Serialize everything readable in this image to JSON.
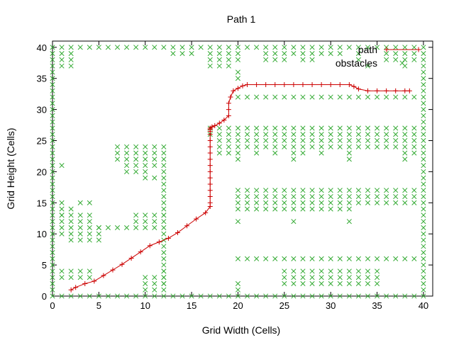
{
  "chart_data": {
    "type": "scatter",
    "title": "Path 1",
    "xlabel": "Grid Width (Cells)",
    "ylabel": "Grid Height (Cells)",
    "xlim": [
      0,
      41
    ],
    "ylim": [
      0,
      41
    ],
    "xticks": [
      0,
      5,
      10,
      15,
      20,
      25,
      30,
      35,
      40
    ],
    "yticks": [
      0,
      5,
      10,
      15,
      20,
      25,
      30,
      35,
      40
    ],
    "grid": false,
    "legend_position": "top-right",
    "series": [
      {
        "name": "path",
        "color": "#cc0000",
        "marker": "plus",
        "style": "line",
        "x": [
          2,
          2.5,
          3.5,
          4.5,
          5.5,
          6.5,
          7.5,
          8.5,
          9.5,
          10.5,
          11.5,
          12.5,
          13.5,
          14.5,
          15.5,
          16.5,
          17,
          17,
          17,
          17,
          17,
          17,
          17,
          17,
          17,
          17,
          17,
          17,
          17,
          17,
          17,
          17,
          17.2,
          17.5,
          18,
          18.5,
          19,
          19,
          19,
          19.2,
          19.5,
          20,
          20.5,
          21,
          22,
          23,
          24,
          25,
          26,
          27,
          28,
          29,
          30,
          31,
          32,
          32.5,
          33,
          34,
          35,
          36,
          37,
          38,
          38.5
        ],
        "y": [
          1,
          1.4,
          2,
          2.4,
          3.3,
          4.2,
          5.1,
          6.1,
          7.1,
          8.1,
          8.7,
          9.3,
          10.2,
          11.3,
          12.4,
          13.4,
          14.4,
          15,
          16,
          17,
          18,
          19,
          20,
          21,
          22,
          23,
          24,
          25,
          26,
          26.5,
          26.8,
          27,
          27.2,
          27.4,
          27.8,
          28.3,
          29,
          30,
          31,
          32,
          33,
          33.4,
          33.8,
          34,
          34,
          34,
          34,
          34,
          34,
          34,
          34,
          34,
          34,
          34,
          34,
          33.7,
          33.3,
          33,
          33,
          33,
          33,
          33,
          33
        ]
      },
      {
        "name": "obstacles",
        "color": "#33aa33",
        "marker": "x",
        "style": "points",
        "x": [
          0,
          0,
          0,
          0,
          0,
          0,
          0,
          0,
          0,
          0,
          0,
          0,
          0,
          0,
          0,
          0,
          0,
          0,
          0,
          0,
          0,
          0,
          0,
          0,
          0,
          0,
          0,
          0,
          0,
          0,
          0,
          0,
          0,
          0,
          0,
          0,
          0,
          0,
          0,
          0,
          0,
          1,
          2,
          3,
          4,
          5,
          6,
          7,
          8,
          9,
          10,
          11,
          12,
          13,
          14,
          15,
          16,
          17,
          18,
          19,
          20,
          21,
          22,
          23,
          24,
          25,
          26,
          27,
          28,
          29,
          30,
          31,
          32,
          33,
          34,
          35,
          36,
          37,
          38,
          39,
          40,
          40,
          40,
          40,
          40,
          40,
          40,
          40,
          40,
          40,
          40,
          40,
          40,
          40,
          40,
          40,
          40,
          40,
          40,
          40,
          40,
          40,
          40,
          40,
          40,
          40,
          40,
          40,
          40,
          40,
          40,
          40,
          40,
          40,
          40,
          40,
          40,
          40,
          40,
          40,
          40,
          1,
          2,
          3,
          4,
          5,
          6,
          7,
          8,
          9,
          10,
          11,
          12,
          13,
          14,
          15,
          16,
          17,
          18,
          19,
          20,
          21,
          22,
          23,
          24,
          25,
          26,
          27,
          28,
          29,
          30,
          31,
          32,
          33,
          34,
          35,
          36,
          37,
          38,
          39,
          1,
          1,
          1,
          2,
          2,
          2,
          13,
          14,
          15,
          17,
          17,
          17,
          18,
          18,
          18,
          19,
          19,
          19,
          20,
          20,
          23,
          23,
          24,
          24,
          25,
          25,
          26,
          27,
          27,
          28,
          28,
          29,
          30,
          31,
          33,
          33,
          34,
          36,
          36,
          37,
          37,
          38,
          38,
          38,
          39,
          39,
          20,
          20,
          20,
          21,
          22,
          23,
          24,
          25,
          26,
          27,
          28,
          29,
          30,
          31,
          32,
          33,
          34,
          35,
          36,
          37,
          38,
          39,
          17,
          18,
          19,
          20,
          21,
          22,
          23,
          24,
          25,
          26,
          27,
          28,
          29,
          30,
          31,
          32,
          33,
          34,
          35,
          36,
          37,
          38,
          39,
          17,
          18,
          19,
          20,
          21,
          22,
          23,
          24,
          25,
          26,
          27,
          28,
          29,
          30,
          31,
          32,
          33,
          34,
          35,
          36,
          37,
          38,
          39,
          18,
          19,
          20,
          21,
          22,
          23,
          24,
          25,
          26,
          27,
          28,
          29,
          30,
          31,
          32,
          33,
          34,
          35,
          36,
          37,
          38,
          39,
          18,
          19,
          20,
          21,
          22,
          23,
          24,
          25,
          26,
          27,
          28,
          29,
          30,
          31,
          32,
          33,
          34,
          35,
          36,
          37,
          38,
          39,
          18,
          19,
          20,
          22,
          24,
          26,
          27,
          29,
          32,
          38,
          39,
          20,
          26,
          32,
          38,
          20,
          21,
          22,
          23,
          24,
          25,
          26,
          27,
          28,
          29,
          30,
          31,
          32,
          33,
          34,
          35,
          36,
          37,
          38,
          39,
          20,
          21,
          22,
          23,
          24,
          25,
          26,
          27,
          28,
          29,
          30,
          31,
          32,
          33,
          34,
          35,
          36,
          37,
          38,
          39,
          20,
          21,
          22,
          23,
          24,
          25,
          26,
          27,
          28,
          29,
          30,
          31,
          32,
          33,
          34,
          35,
          36,
          37,
          38,
          39,
          20,
          21,
          22,
          23,
          24,
          25,
          26,
          27,
          28,
          29,
          30,
          31,
          32,
          20,
          26,
          32,
          20,
          21,
          22,
          23,
          24,
          25,
          26,
          27,
          28,
          29,
          30,
          31,
          32,
          33,
          34,
          35,
          36,
          37,
          38,
          39,
          25,
          26,
          27,
          28,
          29,
          30,
          31,
          32,
          33,
          34,
          35,
          25,
          26,
          27,
          28,
          29,
          30,
          31,
          32,
          33,
          34,
          35,
          25,
          26,
          27,
          28,
          29,
          30,
          31,
          32,
          33,
          34,
          35,
          20,
          20,
          1,
          2,
          3,
          4,
          1,
          2,
          3,
          4,
          1,
          2,
          3,
          4,
          1,
          1,
          2,
          3,
          4,
          5,
          1,
          2,
          3,
          4,
          5,
          1,
          2,
          3,
          4,
          5,
          1,
          1,
          1,
          2,
          2,
          3,
          3,
          4,
          4,
          5,
          6,
          7,
          8,
          7,
          8,
          9,
          10,
          11,
          12,
          7,
          8,
          9,
          10,
          11,
          12,
          7,
          8,
          9,
          10,
          11,
          12,
          8,
          9,
          10,
          11,
          12,
          8,
          9,
          10,
          12,
          9,
          10,
          11,
          12,
          9,
          10,
          11,
          12,
          9,
          10,
          11,
          12,
          10,
          11,
          12,
          12,
          12,
          12,
          12,
          12,
          12,
          12,
          12,
          12,
          12,
          12,
          12,
          12,
          12,
          12,
          10,
          10,
          10,
          11,
          11,
          11,
          12,
          12,
          12,
          12
        ],
        "y": [
          0,
          1,
          2,
          3,
          4,
          5,
          6,
          7,
          8,
          9,
          10,
          11,
          12,
          13,
          14,
          15,
          16,
          17,
          18,
          19,
          20,
          21,
          22,
          23,
          24,
          25,
          26,
          27,
          28,
          29,
          30,
          31,
          32,
          33,
          34,
          35,
          36,
          37,
          38,
          39,
          40,
          0,
          0,
          0,
          0,
          0,
          0,
          0,
          0,
          0,
          0,
          0,
          0,
          0,
          0,
          0,
          0,
          0,
          0,
          0,
          0,
          0,
          0,
          0,
          0,
          0,
          0,
          0,
          0,
          0,
          0,
          0,
          0,
          0,
          0,
          0,
          0,
          0,
          0,
          0,
          0,
          1,
          2,
          3,
          4,
          5,
          6,
          7,
          8,
          9,
          10,
          11,
          12,
          13,
          14,
          15,
          16,
          17,
          18,
          19,
          20,
          21,
          22,
          23,
          24,
          25,
          26,
          27,
          28,
          29,
          30,
          31,
          32,
          33,
          34,
          35,
          36,
          37,
          38,
          39,
          40,
          40,
          40,
          40,
          40,
          40,
          40,
          40,
          40,
          40,
          40,
          40,
          40,
          40,
          40,
          40,
          40,
          40,
          40,
          40,
          40,
          40,
          40,
          40,
          40,
          40,
          40,
          40,
          40,
          40,
          40,
          40,
          40,
          40,
          40,
          40,
          40,
          40,
          40,
          40,
          39,
          38,
          37,
          39,
          38,
          37,
          39,
          39,
          39,
          39,
          38,
          37,
          39,
          38,
          37,
          39,
          38,
          37,
          39,
          38,
          39,
          38,
          39,
          38,
          39,
          38,
          39,
          39,
          38,
          39,
          38,
          39,
          39,
          39,
          39,
          38,
          37,
          39,
          38,
          39,
          38,
          39,
          38,
          37,
          39,
          38,
          36,
          35,
          32,
          32,
          32,
          32,
          32,
          32,
          32,
          32,
          32,
          32,
          32,
          32,
          32,
          32,
          32,
          32,
          32,
          32,
          32,
          32,
          27,
          27,
          27,
          27,
          27,
          27,
          27,
          27,
          27,
          27,
          27,
          27,
          27,
          27,
          27,
          27,
          27,
          27,
          27,
          27,
          27,
          27,
          27,
          26,
          26,
          26,
          26,
          26,
          26,
          26,
          26,
          26,
          26,
          26,
          26,
          26,
          26,
          26,
          26,
          26,
          26,
          26,
          26,
          26,
          26,
          26,
          25,
          25,
          25,
          25,
          25,
          25,
          25,
          25,
          25,
          25,
          25,
          25,
          25,
          25,
          25,
          25,
          25,
          25,
          25,
          25,
          25,
          25,
          24,
          24,
          24,
          24,
          24,
          24,
          24,
          24,
          24,
          24,
          24,
          24,
          24,
          24,
          24,
          24,
          24,
          24,
          24,
          24,
          24,
          24,
          23,
          23,
          23,
          23,
          23,
          23,
          23,
          23,
          23,
          23,
          23,
          22,
          22,
          22,
          22,
          17,
          17,
          17,
          17,
          17,
          17,
          17,
          17,
          17,
          17,
          17,
          17,
          17,
          17,
          17,
          17,
          17,
          17,
          17,
          17,
          16,
          16,
          16,
          16,
          16,
          16,
          16,
          16,
          16,
          16,
          16,
          16,
          16,
          16,
          16,
          16,
          16,
          16,
          16,
          16,
          15,
          15,
          15,
          15,
          15,
          15,
          15,
          15,
          15,
          15,
          15,
          15,
          15,
          15,
          15,
          15,
          15,
          15,
          15,
          15,
          14,
          14,
          14,
          14,
          14,
          14,
          14,
          14,
          14,
          14,
          14,
          14,
          14,
          12,
          12,
          12,
          6,
          6,
          6,
          6,
          6,
          6,
          6,
          6,
          6,
          6,
          6,
          6,
          6,
          6,
          6,
          6,
          6,
          6,
          6,
          6,
          4,
          4,
          4,
          4,
          4,
          4,
          4,
          4,
          4,
          4,
          4,
          3,
          3,
          3,
          3,
          3,
          3,
          3,
          3,
          3,
          3,
          3,
          2,
          2,
          2,
          2,
          2,
          2,
          2,
          2,
          2,
          2,
          2,
          2,
          1,
          4,
          4,
          4,
          4,
          3,
          3,
          3,
          3,
          15,
          14,
          15,
          15,
          14,
          13,
          11,
          11,
          11,
          11,
          11,
          10,
          10,
          10,
          10,
          10,
          9,
          9,
          9,
          9,
          21,
          12,
          13,
          12,
          13,
          12,
          13,
          12,
          13,
          11,
          11,
          11,
          11,
          24,
          24,
          24,
          24,
          24,
          24,
          23,
          23,
          23,
          23,
          23,
          23,
          22,
          22,
          22,
          22,
          22,
          22,
          21,
          21,
          21,
          21,
          21,
          20,
          20,
          20,
          20,
          13,
          13,
          13,
          13,
          12,
          12,
          12,
          12,
          11,
          11,
          11,
          11,
          19,
          19,
          19,
          18,
          17,
          16,
          15,
          14,
          13,
          10,
          9,
          8,
          7,
          6,
          5,
          4,
          3,
          2,
          3,
          2,
          1,
          3,
          2,
          1,
          3,
          2,
          1,
          4
        ]
      }
    ]
  }
}
